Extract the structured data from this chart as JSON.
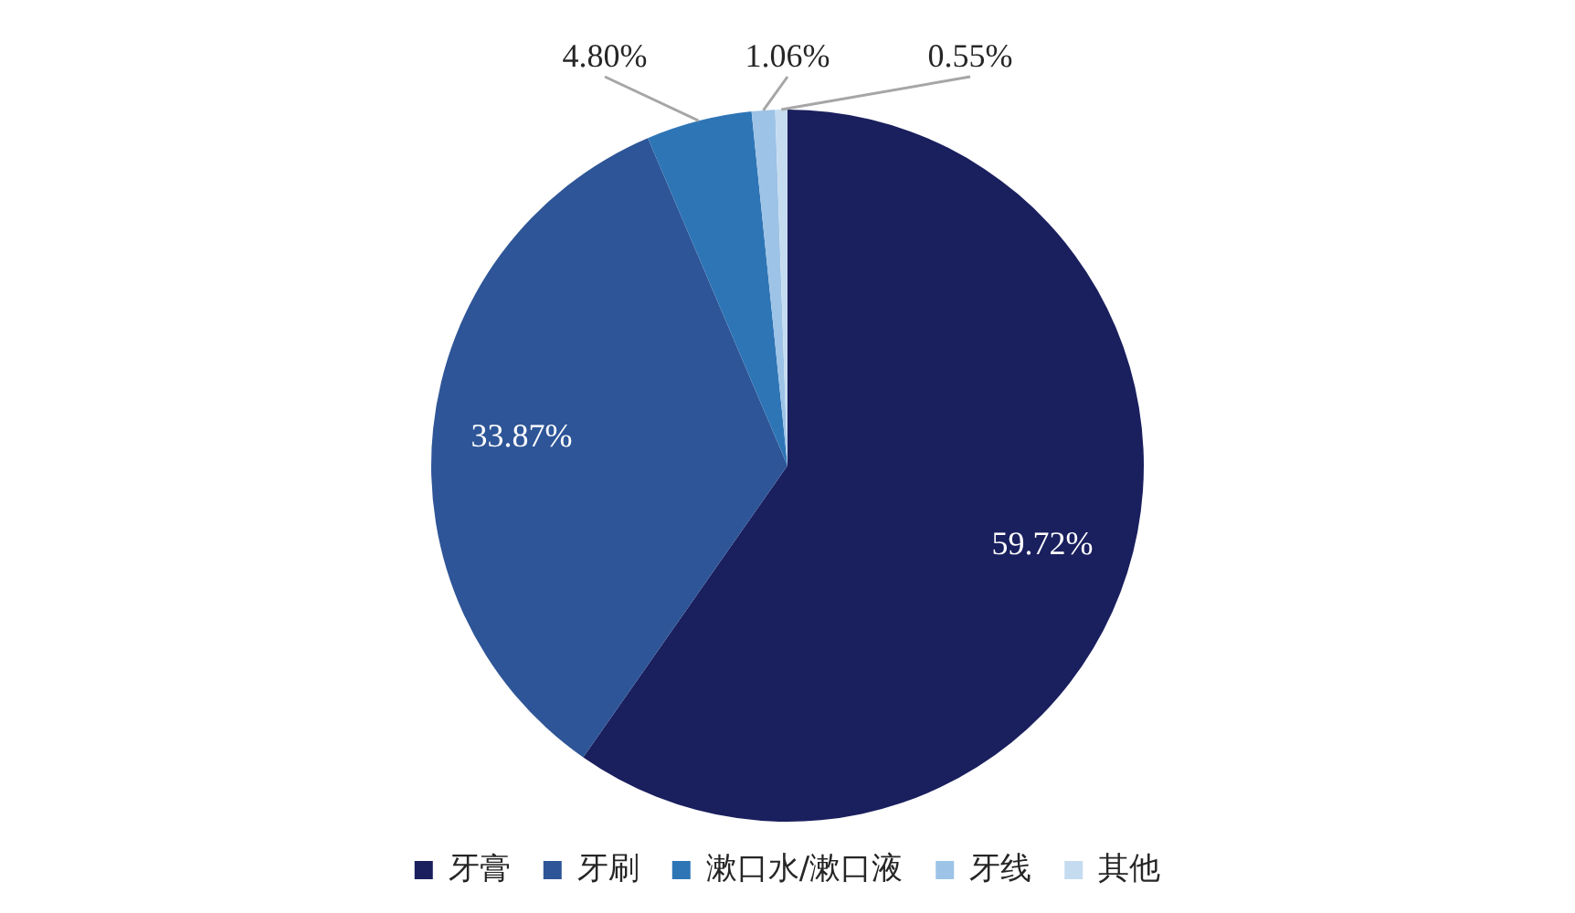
{
  "chart_data": {
    "type": "pie",
    "categories": [
      "牙膏",
      "牙刷",
      "漱口水/漱口液",
      "牙线",
      "其他"
    ],
    "values": [
      59.72,
      33.87,
      4.8,
      1.06,
      0.55
    ],
    "value_labels": [
      "59.72%",
      "33.87%",
      "4.80%",
      "1.06%",
      "0.55%"
    ],
    "colors": [
      "#1a1f5e",
      "#2e5597",
      "#2e75b6",
      "#9dc3e6",
      "#c5dcf0"
    ],
    "legend": "bottom"
  }
}
